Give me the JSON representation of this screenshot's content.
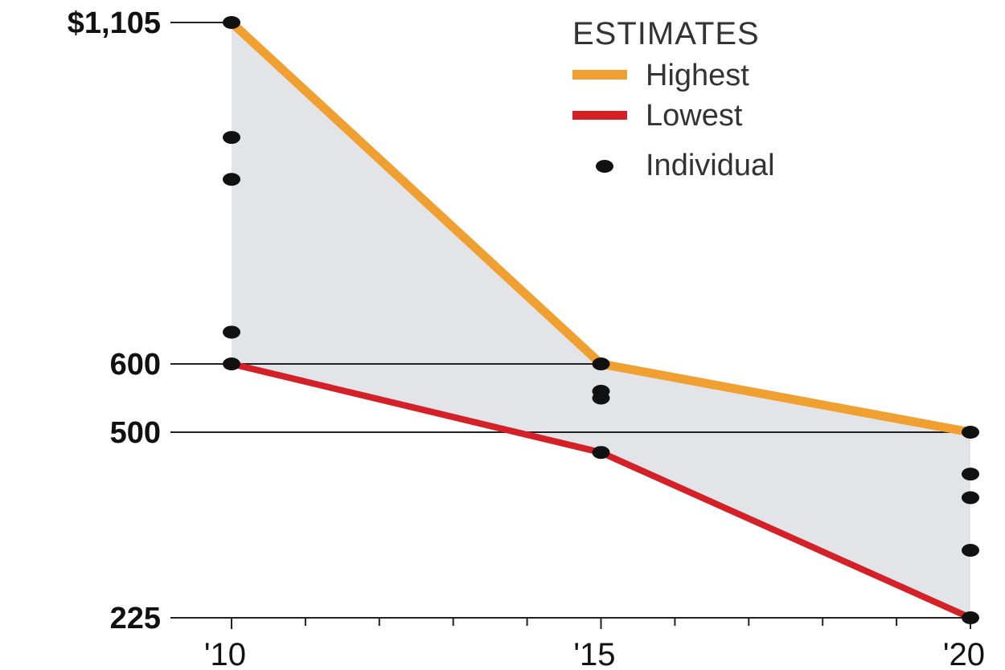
{
  "chart_data": {
    "type": "line",
    "title": "",
    "xlabel": "",
    "ylabel": "",
    "x": [
      2010,
      2015,
      2020
    ],
    "x_tick_labels": [
      "'10",
      "'15",
      "'20"
    ],
    "y_tick_values": [
      1105,
      600,
      500,
      225
    ],
    "y_tick_labels": [
      "$1,105",
      "600",
      "500",
      "225"
    ],
    "ylim": [
      225,
      1105
    ],
    "series": [
      {
        "name": "Highest",
        "color": "#F0A030",
        "values": [
          1105,
          600,
          500
        ]
      },
      {
        "name": "Lowest",
        "color": "#D42027",
        "values": [
          600,
          470,
          225
        ]
      }
    ],
    "individual": {
      "name": "Individual",
      "color": "#111111",
      "points": [
        [
          2010,
          1105
        ],
        [
          2010,
          935
        ],
        [
          2010,
          873
        ],
        [
          2010,
          647
        ],
        [
          2010,
          600
        ],
        [
          2015,
          600
        ],
        [
          2015,
          560
        ],
        [
          2015,
          550
        ],
        [
          2015,
          470
        ],
        [
          2020,
          500
        ],
        [
          2020,
          438
        ],
        [
          2020,
          403
        ],
        [
          2020,
          325
        ],
        [
          2020,
          225
        ]
      ]
    },
    "band_fill": "#E2E4E8",
    "legend": {
      "title": "ESTIMATES",
      "position": "top-right",
      "entries": [
        "Highest",
        "Lowest",
        "Individual"
      ]
    }
  }
}
